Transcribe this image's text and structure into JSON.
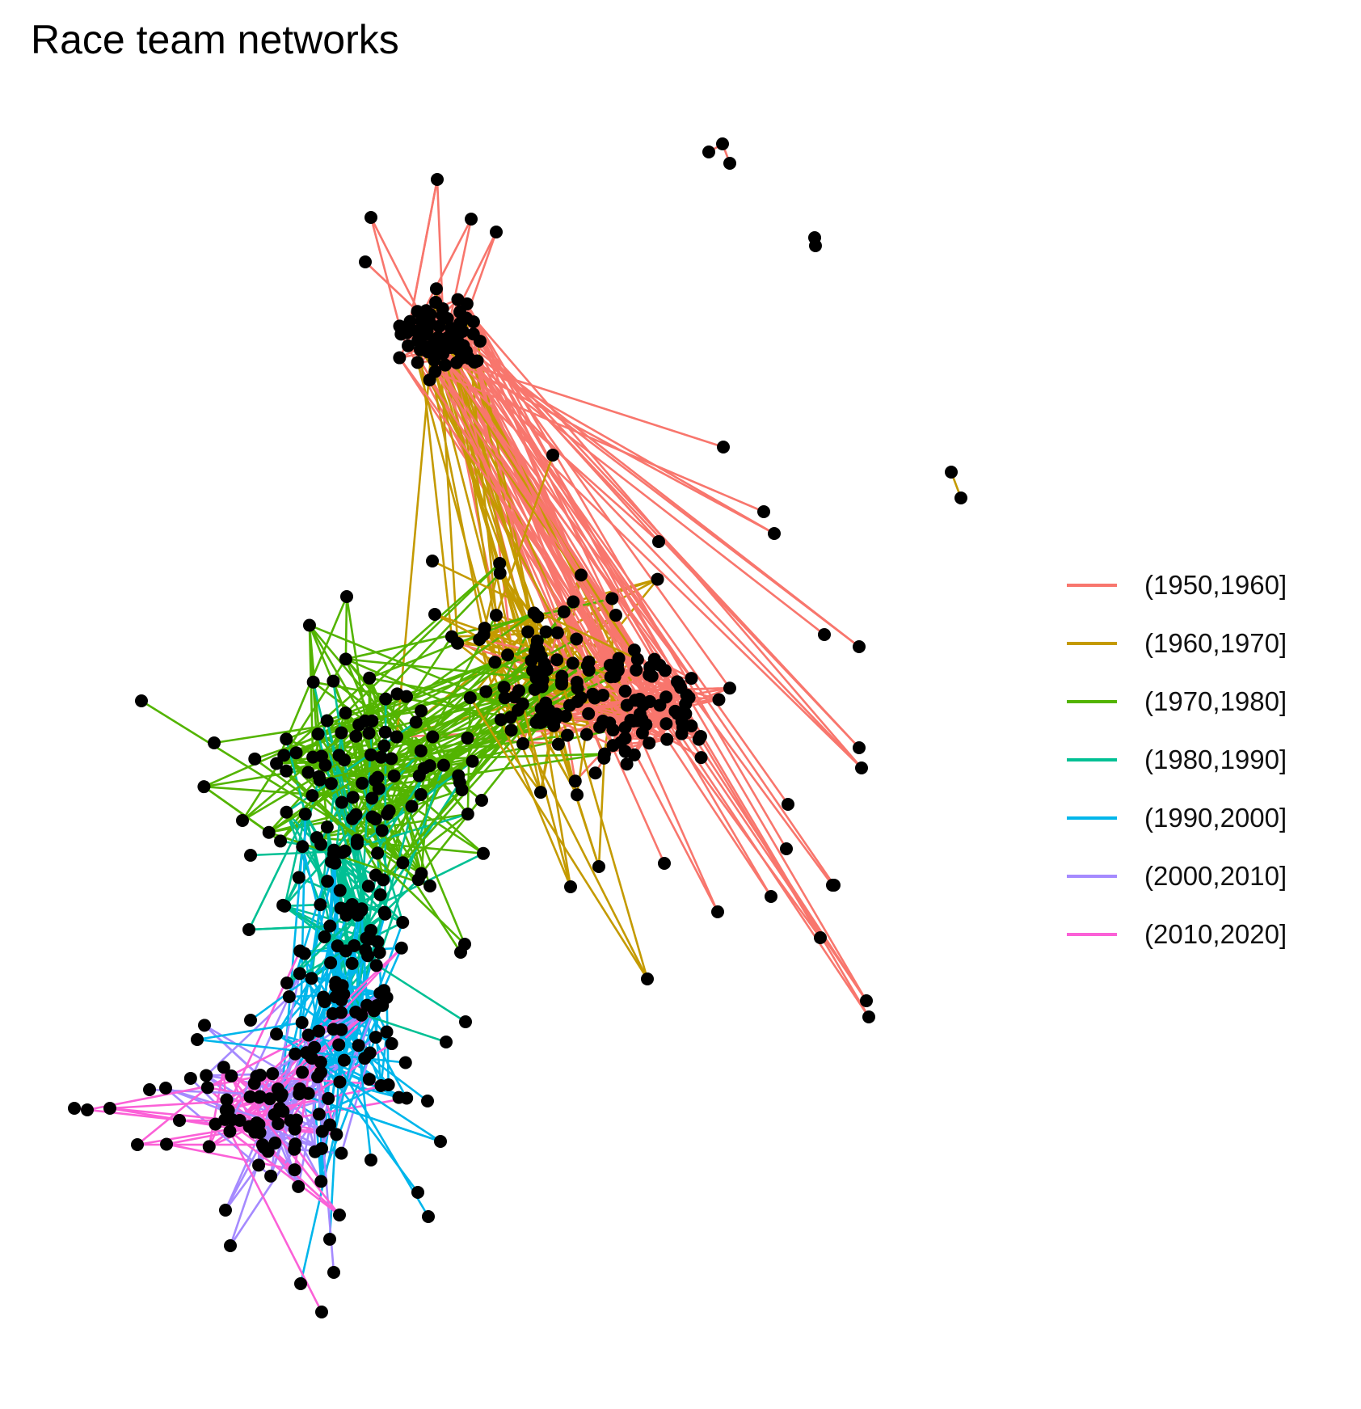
{
  "title": "Race team networks",
  "legend": {
    "items": [
      {
        "label": "(1950,1960]",
        "color": "#F8766D"
      },
      {
        "label": "(1960,1970]",
        "color": "#C49A00"
      },
      {
        "label": "(1970,1980]",
        "color": "#53B400"
      },
      {
        "label": "(1980,1990]",
        "color": "#00C094"
      },
      {
        "label": "(1990,2000]",
        "color": "#00B6EB"
      },
      {
        "label": "(2000,2010]",
        "color": "#A58AFF"
      },
      {
        "label": "(2010,2020]",
        "color": "#FB61D7"
      }
    ]
  },
  "node_color": "#000000"
}
